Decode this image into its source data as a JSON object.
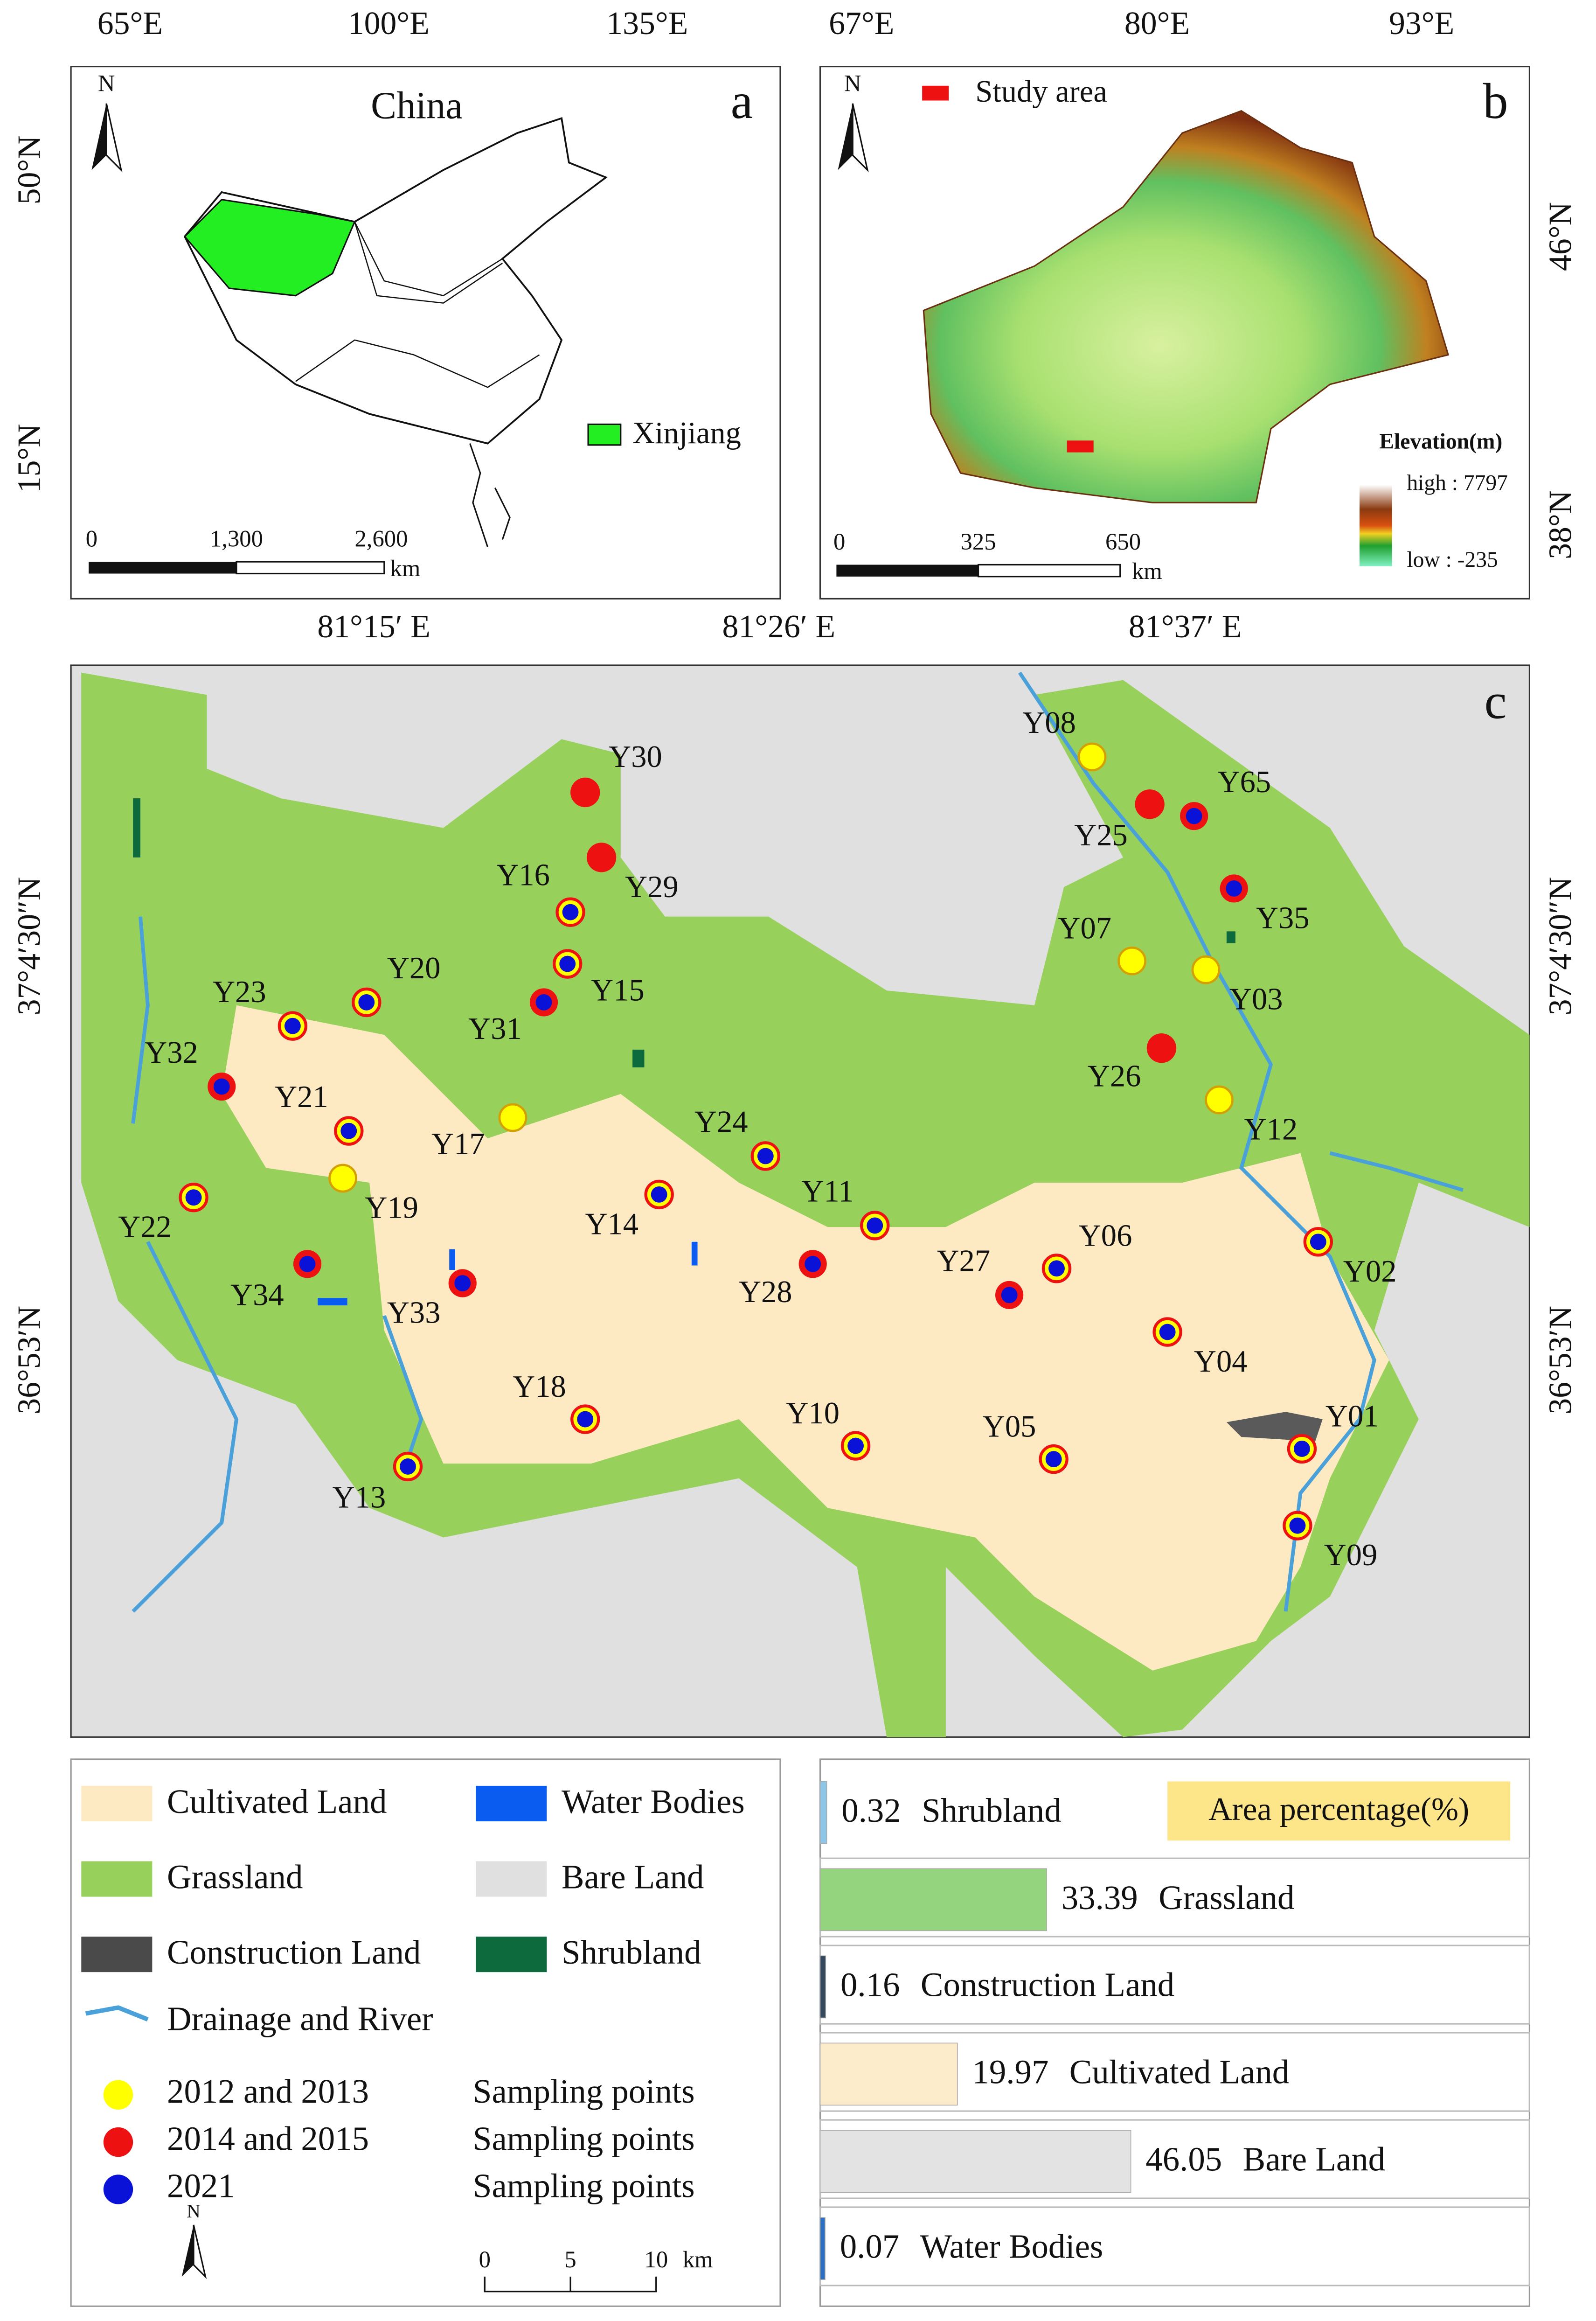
{
  "panel_a": {
    "label": "a",
    "title": "China",
    "lon_ticks": [
      "65°E",
      "100°E",
      "135°E"
    ],
    "lat_ticks": [
      "50°N",
      "15°N"
    ],
    "north": "N",
    "legend": "Xinjiang",
    "scale": [
      "0",
      "1,300",
      "2,600"
    ],
    "scale_unit": "km"
  },
  "panel_b": {
    "label": "b",
    "legend": "Study area",
    "lon_ticks": [
      "67°E",
      "80°E",
      "93°E"
    ],
    "lat_ticks": [
      "46°N",
      "38°N"
    ],
    "north": "N",
    "elevation_title": "Elevation(m)",
    "elevation_high": "high : 7797",
    "elevation_low": "low : -235",
    "scale": [
      "0",
      "325",
      "650"
    ],
    "scale_unit": "km"
  },
  "panel_c": {
    "label": "c",
    "lon_ticks": [
      "81°15′ E",
      "81°26′ E",
      "81°37′ E"
    ],
    "lat_ticks": [
      "37°4′30″N",
      "36°53′N"
    ],
    "points": [
      "Y30",
      "Y29",
      "Y16",
      "Y15",
      "Y31",
      "Y20",
      "Y23",
      "Y32",
      "Y21",
      "Y17",
      "Y19",
      "Y22",
      "Y34",
      "Y33",
      "Y14",
      "Y24",
      "Y11",
      "Y28",
      "Y27",
      "Y06",
      "Y18",
      "Y10",
      "Y05",
      "Y13",
      "Y04",
      "Y02",
      "Y01",
      "Y09",
      "Y08",
      "Y25",
      "Y65",
      "Y35",
      "Y07",
      "Y03",
      "Y12",
      "Y26"
    ]
  },
  "legend": {
    "land_cover": [
      {
        "name": "Cultivated Land",
        "color": "#fde9c2"
      },
      {
        "name": "Water Bodies",
        "color": "#0a5cf0"
      },
      {
        "name": "Grassland",
        "color": "#98d05c"
      },
      {
        "name": "Bare Land",
        "color": "#e0e0e0"
      },
      {
        "name": "Construction Land",
        "color": "#4a4a4a"
      },
      {
        "name": "Shrubland",
        "color": "#0c6a3c"
      }
    ],
    "river": "Drainage and River",
    "sampling": [
      {
        "years": "2012 and 2013",
        "text": "Sampling points",
        "color": "#ffff00"
      },
      {
        "years": "2014 and 2015",
        "text": "Sampling points",
        "color": "#ee1111"
      },
      {
        "years": "2021",
        "text": "Sampling points",
        "color": "#0a12d8"
      }
    ],
    "north": "N",
    "scale": [
      "0",
      "5",
      "10"
    ],
    "scale_unit": "km"
  },
  "area_chart": {
    "title": "Area percentage(%)",
    "categories": [
      "Shrubland",
      "Grassland",
      "Construction Land",
      "Cultivated Land",
      "Bare Land",
      "Water Bodies"
    ],
    "values": [
      0.32,
      33.39,
      0.16,
      19.97,
      46.05,
      0.07
    ],
    "colors": [
      "#8ec6e8",
      "#94d47f",
      "#34495e",
      "#fdeccb",
      "#e3e3e3",
      "#2a6fc2"
    ]
  }
}
